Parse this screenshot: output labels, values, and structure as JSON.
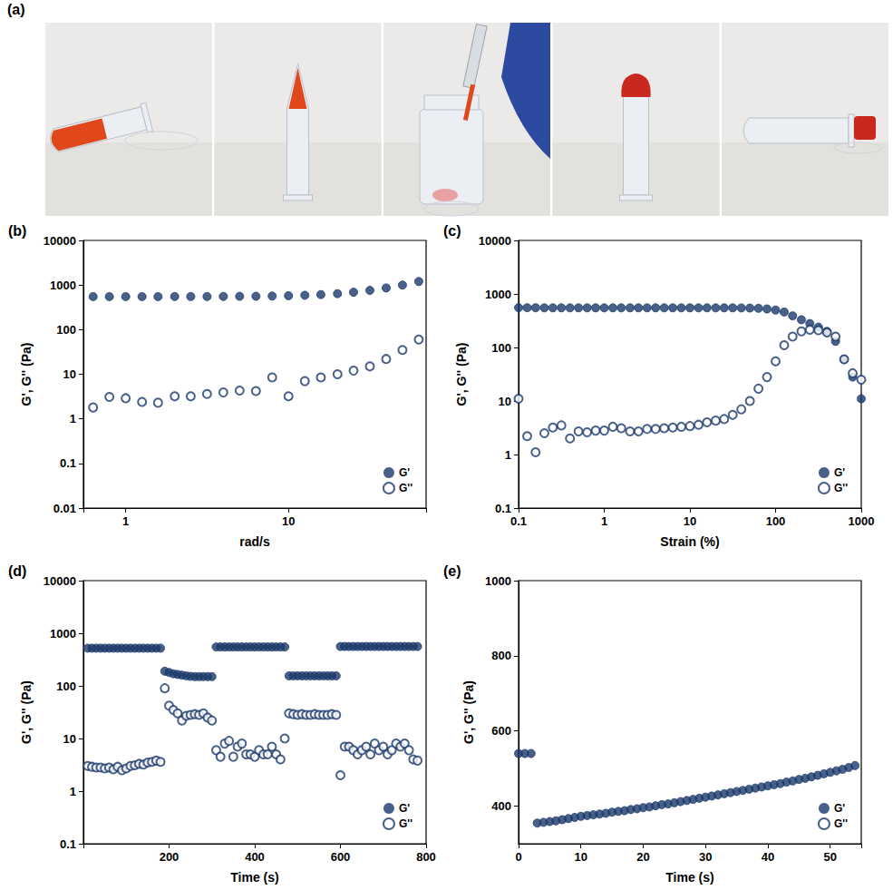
{
  "panel_a": {
    "label": "(a)"
  },
  "chart_data": [
    {
      "title": "(b)",
      "type": "scatter",
      "x_label": "rad/s",
      "y_label": "G', G'' (Pa)",
      "log": true,
      "grid": false,
      "legend": "lower right",
      "xlim": [
        0.55,
        70
      ],
      "xticks": [
        1,
        10
      ],
      "ylim": [
        0.01,
        10000
      ],
      "yticks": [
        0.01,
        0.1,
        1,
        10,
        100,
        1000,
        10000
      ],
      "x": [
        0.631,
        0.794,
        1,
        1.26,
        1.58,
        2,
        2.51,
        3.16,
        3.98,
        5.01,
        6.31,
        7.94,
        10,
        12.6,
        15.8,
        20,
        25.1,
        31.6,
        39.8,
        50.1,
        63.1
      ],
      "series": [
        {
          "name": "G'",
          "color": "#1c3a6a",
          "marker": "circle",
          "values": [
            550,
            550,
            550,
            550,
            550,
            552,
            552,
            553,
            555,
            558,
            560,
            565,
            575,
            590,
            610,
            640,
            690,
            760,
            860,
            1000,
            1200
          ]
        },
        {
          "name": "G''",
          "color": "#1c3a6a",
          "marker": "open_circle",
          "values": [
            1.8,
            3.1,
            2.9,
            2.4,
            2.3,
            3.2,
            3.2,
            3.6,
            3.9,
            4.3,
            4.2,
            8.5,
            3.2,
            7,
            8.5,
            10,
            12,
            15,
            22,
            35,
            60
          ]
        }
      ]
    },
    {
      "title": "(c)",
      "type": "scatter",
      "x_label": "Strain (%)",
      "y_label": "G', G'' (Pa)",
      "log": true,
      "grid": false,
      "legend": "lower right",
      "xlim": [
        0.1,
        1000
      ],
      "xticks": [
        0.1,
        1,
        10,
        100,
        1000
      ],
      "ylim": [
        0.1,
        10000
      ],
      "yticks": [
        0.1,
        1,
        10,
        100,
        1000,
        10000
      ],
      "x": [
        0.1,
        0.126,
        0.158,
        0.2,
        0.251,
        0.316,
        0.398,
        0.501,
        0.631,
        0.794,
        1,
        1.26,
        1.58,
        2,
        2.51,
        3.16,
        3.98,
        5.01,
        6.31,
        7.94,
        10,
        12.6,
        15.8,
        20,
        25.1,
        31.6,
        39.8,
        50.1,
        63.1,
        79.4,
        100,
        126,
        158,
        200,
        251,
        316,
        398,
        501,
        631,
        794,
        1000
      ],
      "series": [
        {
          "name": "G'",
          "color": "#1c3a6a",
          "marker": "circle",
          "values": [
            555,
            553,
            552,
            550,
            550,
            550,
            550,
            550,
            550,
            550,
            550,
            550,
            550,
            550,
            550,
            550,
            550,
            550,
            550,
            550,
            550,
            550,
            550,
            550,
            550,
            550,
            548,
            545,
            540,
            525,
            500,
            460,
            390,
            330,
            280,
            240,
            200,
            130,
            60,
            28,
            11
          ]
        },
        {
          "name": "G''",
          "color": "#1c3a6a",
          "marker": "open_circle",
          "values": [
            11,
            2.2,
            1.1,
            2.5,
            3.2,
            3.5,
            2.0,
            2.7,
            2.6,
            2.8,
            2.8,
            3.3,
            3.1,
            2.7,
            2.7,
            3.0,
            3.0,
            3.1,
            3.2,
            3.3,
            3.4,
            3.6,
            4.0,
            4.3,
            4.6,
            5.5,
            7,
            10,
            17,
            28,
            55,
            110,
            160,
            200,
            215,
            210,
            190,
            160,
            60,
            33,
            25
          ]
        }
      ]
    },
    {
      "title": "(d)",
      "type": "scatter",
      "x_label": "Time (s)",
      "y_label": "G', G'' (Pa)",
      "log": "y",
      "grid": false,
      "legend": "lower right",
      "xlim": [
        0,
        800
      ],
      "xticks": [
        200,
        400,
        600,
        800
      ],
      "ylim": [
        0.1,
        10000
      ],
      "yticks": [
        0.1,
        1,
        10,
        100,
        1000,
        10000
      ],
      "x": [
        10,
        20,
        30,
        40,
        50,
        60,
        70,
        80,
        90,
        100,
        110,
        120,
        130,
        140,
        150,
        160,
        170,
        180,
        190,
        200,
        210,
        220,
        230,
        240,
        250,
        260,
        270,
        280,
        290,
        300,
        310,
        320,
        330,
        340,
        350,
        360,
        370,
        380,
        390,
        400,
        410,
        420,
        430,
        440,
        450,
        460,
        470,
        480,
        490,
        500,
        510,
        520,
        530,
        540,
        550,
        560,
        570,
        580,
        590,
        600,
        610,
        620,
        630,
        640,
        650,
        660,
        670,
        680,
        690,
        700,
        710,
        720,
        730,
        740,
        750,
        760,
        770,
        780
      ],
      "series": [
        {
          "name": "G'",
          "color": "#1c3a6a",
          "marker": "circle",
          "values": [
            520,
            520,
            520,
            520,
            520,
            520,
            520,
            520,
            520,
            520,
            520,
            520,
            520,
            520,
            520,
            520,
            520,
            520,
            190,
            180,
            170,
            165,
            160,
            155,
            152,
            150,
            150,
            150,
            150,
            150,
            550,
            550,
            550,
            550,
            550,
            550,
            550,
            550,
            550,
            550,
            550,
            550,
            550,
            550,
            550,
            550,
            550,
            155,
            155,
            155,
            155,
            155,
            155,
            155,
            155,
            155,
            155,
            155,
            155,
            560,
            560,
            560,
            560,
            560,
            560,
            560,
            560,
            560,
            560,
            560,
            560,
            560,
            560,
            560,
            560,
            560,
            560,
            560
          ]
        },
        {
          "name": "G''",
          "color": "#1c3a6a",
          "marker": "open_circle",
          "values": [
            3.0,
            2.9,
            2.8,
            2.8,
            2.7,
            2.8,
            2.6,
            2.9,
            2.5,
            2.7,
            3.0,
            3.1,
            3.3,
            3.2,
            3.5,
            3.6,
            3.8,
            3.6,
            90,
            42,
            35,
            30,
            22,
            27,
            28,
            29,
            28,
            30,
            25,
            22,
            6,
            4.5,
            8,
            9,
            4.5,
            7,
            8,
            5,
            5,
            4.5,
            6,
            5,
            5,
            7,
            5,
            4,
            10,
            30,
            29,
            28,
            29,
            28,
            28,
            29,
            28,
            28,
            28,
            29,
            28,
            2,
            7,
            7,
            6,
            5,
            6,
            7,
            5,
            8,
            6,
            7,
            5,
            6,
            8,
            7,
            8,
            6,
            4,
            3.8
          ]
        }
      ]
    },
    {
      "title": "(e)",
      "type": "scatter",
      "x_label": "Time (s)",
      "y_label": "G', G'' (Pa)",
      "grid": false,
      "legend": "lower right",
      "xlim": [
        0,
        55
      ],
      "xticks": [
        0,
        10,
        20,
        30,
        40,
        50
      ],
      "ylim": [
        300,
        1000
      ],
      "yticks": [
        400,
        600,
        800,
        1000
      ],
      "x": [
        0,
        1,
        2,
        3,
        4,
        5,
        6,
        7,
        8,
        9,
        10,
        11,
        12,
        13,
        14,
        15,
        16,
        17,
        18,
        19,
        20,
        21,
        22,
        23,
        24,
        25,
        26,
        27,
        28,
        29,
        30,
        31,
        32,
        33,
        34,
        35,
        36,
        37,
        38,
        39,
        40,
        41,
        42,
        43,
        44,
        45,
        46,
        47,
        48,
        49,
        50,
        51,
        52,
        53,
        54
      ],
      "series": [
        {
          "name": "G'",
          "color": "#1c3a6a",
          "marker": "circle",
          "values": [
            540,
            540,
            540,
            355,
            357,
            359,
            361,
            364,
            367,
            370,
            373,
            375,
            377,
            379,
            381,
            384,
            386,
            388,
            391,
            393,
            396,
            398,
            401,
            404,
            406,
            409,
            412,
            415,
            418,
            421,
            424,
            427,
            430,
            433,
            436,
            439,
            442,
            445,
            448,
            451,
            454,
            457,
            460,
            464,
            467,
            471,
            474,
            478,
            482,
            486,
            490,
            494,
            498,
            503,
            508
          ]
        },
        {
          "name": "G''",
          "color": "#1c3a6a",
          "marker": "open_circle",
          "values": [
            null,
            null,
            null,
            null,
            null,
            null,
            null,
            null,
            null,
            null,
            null,
            null,
            null,
            null,
            null,
            null,
            null,
            null,
            null,
            null,
            null,
            null,
            null,
            null,
            null,
            null,
            null,
            null,
            null,
            null,
            null,
            null,
            null,
            null,
            null,
            null,
            null,
            null,
            null,
            null,
            null,
            null,
            null,
            null,
            null,
            null,
            null,
            null,
            null,
            null,
            null,
            null,
            null,
            null,
            null
          ]
        }
      ]
    }
  ]
}
